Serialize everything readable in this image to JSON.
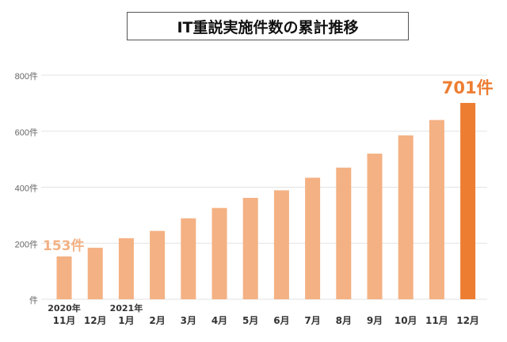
{
  "chart_data": {
    "type": "bar",
    "title": "IT重説実施件数の累計推移",
    "categories": [
      "11月",
      "12月",
      "1月",
      "2月",
      "3月",
      "4月",
      "5月",
      "6月",
      "7月",
      "8月",
      "9月",
      "10月",
      "11月",
      "12月"
    ],
    "year_labels": [
      {
        "index": 0,
        "label": "2020年"
      },
      {
        "index": 2,
        "label": "2021年"
      }
    ],
    "values": [
      153,
      184,
      218,
      244,
      289,
      326,
      362,
      389,
      434,
      470,
      520,
      585,
      640,
      701
    ],
    "ylim": [
      0,
      800
    ],
    "yticks": [
      0,
      200,
      400,
      600,
      800
    ],
    "ytick_labels": [
      "件",
      "200件",
      "400件",
      "600件",
      "800件"
    ],
    "grid": true,
    "annotations": [
      {
        "index": 0,
        "text": "153件",
        "color": "#F4B183"
      },
      {
        "index": 13,
        "text": "701件",
        "color": "#ED7D31"
      }
    ],
    "colors": {
      "bar": "#F4B183",
      "highlight": "#ED7D31",
      "grid": "#E3E3E3",
      "axis_text": "#666666",
      "cat_text": "#333333"
    },
    "highlight_index": 13
  }
}
